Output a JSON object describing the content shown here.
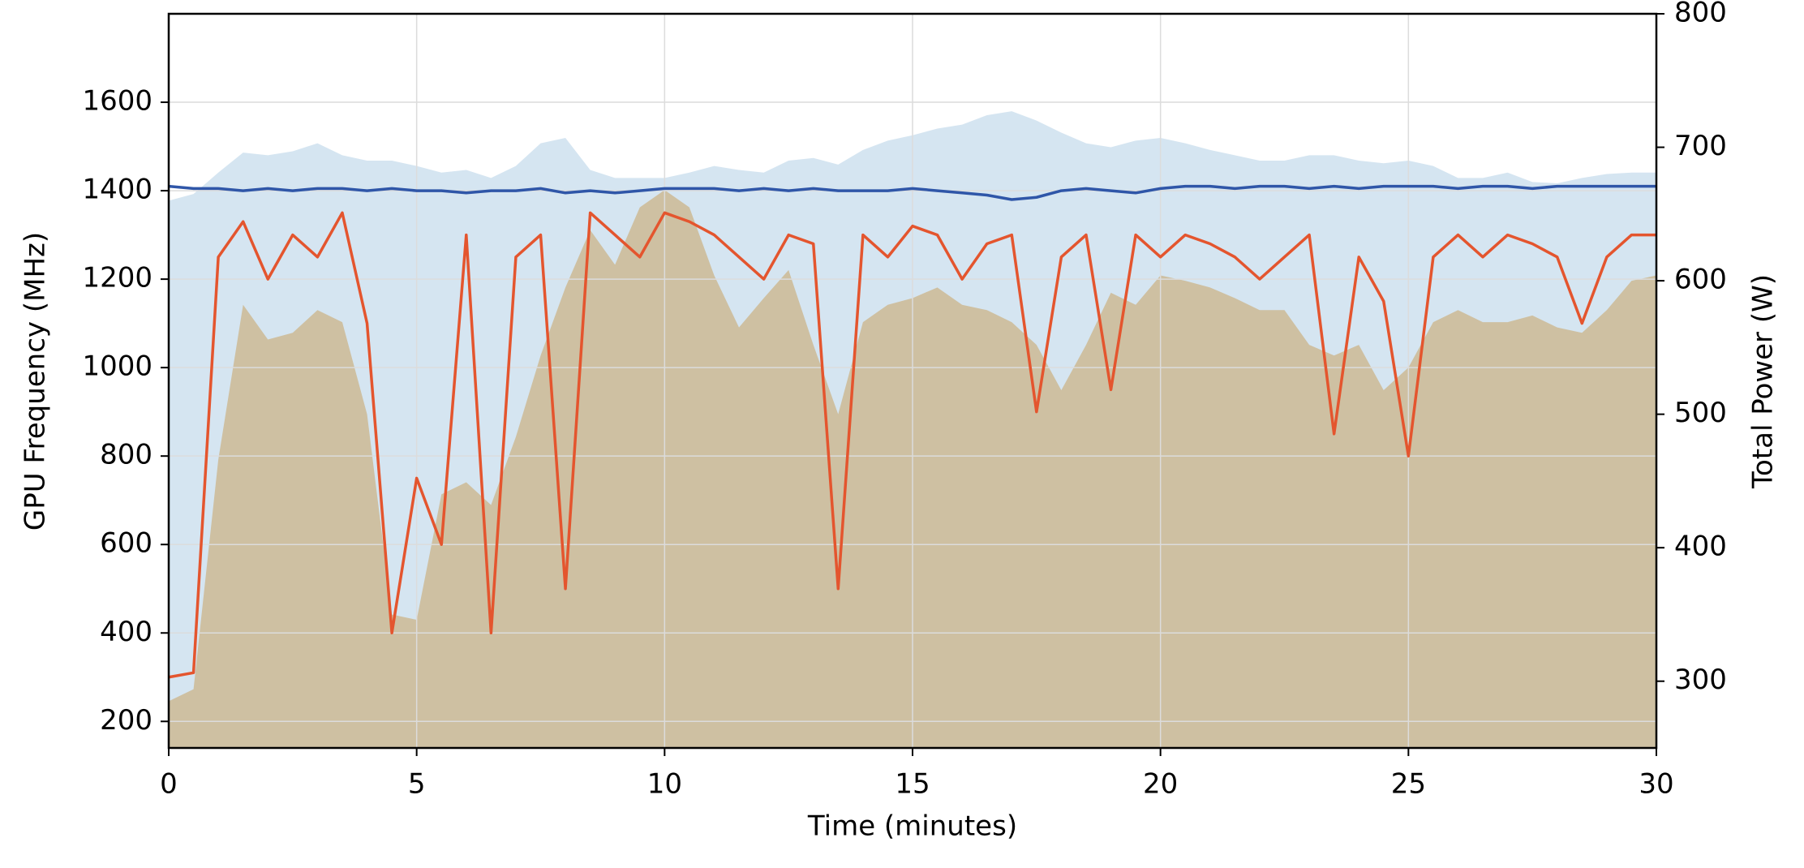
{
  "chart_data": {
    "type": "line",
    "xlabel": "Time (minutes)",
    "ylabel": "GPU Frequency (MHz)",
    "y2label": "Total Power (W)",
    "x": [
      0,
      0.5,
      1,
      1.5,
      2,
      2.5,
      3,
      3.5,
      4,
      4.5,
      5,
      5.5,
      6,
      6.5,
      7,
      7.5,
      8,
      8.5,
      9,
      9.5,
      10,
      10.5,
      11,
      11.5,
      12,
      12.5,
      13,
      13.5,
      14,
      14.5,
      15,
      15.5,
      16,
      16.5,
      17,
      17.5,
      18,
      18.5,
      19,
      19.5,
      20,
      20.5,
      21,
      21.5,
      22,
      22.5,
      23,
      23.5,
      24,
      24.5,
      25,
      25.5,
      26,
      26.5,
      27,
      27.5,
      28,
      28.5,
      29,
      29.5,
      30
    ],
    "series": [
      {
        "type": "area",
        "axis": "y2",
        "color": "#d5e5f1",
        "values": [
          660,
          665,
          681,
          696,
          694,
          697,
          703,
          694,
          690,
          690,
          686,
          681,
          683,
          677,
          686,
          703,
          707,
          683,
          677,
          677,
          677,
          681,
          686,
          683,
          681,
          690,
          692,
          687,
          698,
          705,
          709,
          714,
          717,
          724,
          727,
          720,
          711,
          703,
          700,
          705,
          707,
          703,
          698,
          694,
          690,
          690,
          694,
          694,
          690,
          688,
          690,
          686,
          677,
          677,
          681,
          674,
          673,
          677,
          680,
          681,
          681
        ]
      },
      {
        "type": "area",
        "axis": "y2",
        "color": "#cec0a2",
        "values": [
          285,
          294,
          466,
          582,
          556,
          561,
          578,
          569,
          500,
          350,
          346,
          440,
          449,
          432,
          483,
          544,
          595,
          638,
          612,
          655,
          668,
          655,
          604,
          565,
          587,
          608,
          552,
          500,
          569,
          582,
          587,
          595,
          582,
          578,
          569,
          552,
          518,
          552,
          591,
          582,
          604,
          600,
          595,
          587,
          578,
          578,
          552,
          544,
          552,
          518,
          535,
          569,
          578,
          569,
          569,
          574,
          565,
          561,
          578,
          600,
          604
        ]
      },
      {
        "type": "line",
        "color": "#2f56a8",
        "values": [
          1410,
          1405,
          1405,
          1400,
          1405,
          1400,
          1405,
          1405,
          1400,
          1405,
          1400,
          1400,
          1395,
          1400,
          1400,
          1405,
          1395,
          1400,
          1395,
          1400,
          1405,
          1405,
          1405,
          1400,
          1405,
          1400,
          1405,
          1400,
          1400,
          1400,
          1405,
          1400,
          1395,
          1390,
          1380,
          1385,
          1400,
          1405,
          1400,
          1395,
          1405,
          1410,
          1410,
          1405,
          1410,
          1410,
          1405,
          1410,
          1405,
          1410,
          1410,
          1410,
          1405,
          1410,
          1410,
          1405,
          1410,
          1410,
          1410,
          1410,
          1410
        ]
      },
      {
        "type": "line",
        "color": "#e4552e",
        "values": [
          300,
          310,
          1250,
          1330,
          1200,
          1300,
          1250,
          1350,
          1100,
          400,
          750,
          600,
          1300,
          400,
          1250,
          1300,
          500,
          1350,
          1300,
          1250,
          1350,
          1330,
          1300,
          1250,
          1200,
          1300,
          1280,
          500,
          1300,
          1250,
          1320,
          1300,
          1200,
          1280,
          1300,
          900,
          1250,
          1300,
          950,
          1300,
          1250,
          1300,
          1280,
          1250,
          1200,
          1250,
          1300,
          850,
          1250,
          1150,
          800,
          1250,
          1300,
          1250,
          1300,
          1280,
          1250,
          1100,
          1250,
          1300,
          1300
        ]
      }
    ],
    "xlim": [
      0,
      30
    ],
    "xticks": [
      0,
      5,
      10,
      15,
      20,
      25,
      30
    ],
    "ylim": [
      140,
      1800
    ],
    "yticks": [
      200,
      400,
      600,
      800,
      1000,
      1200,
      1400,
      1600
    ],
    "y2lim": [
      250,
      800
    ],
    "y2ticks": [
      300,
      400,
      500,
      600,
      700,
      800
    ],
    "grid": true
  }
}
